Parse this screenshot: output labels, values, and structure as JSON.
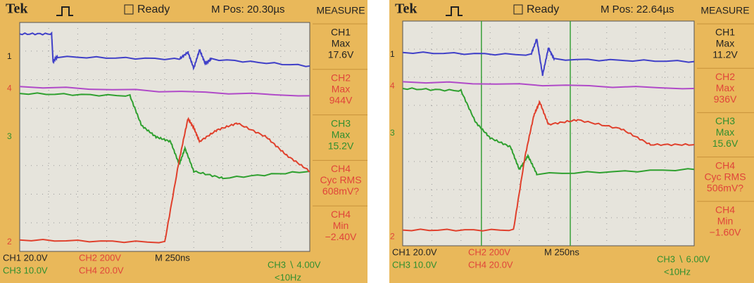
{
  "scopes": [
    {
      "header": {
        "brand": "Tek",
        "status": "Ready",
        "mpos": "M Pos: 20.30µs"
      },
      "measure": {
        "title": "MEASURE",
        "items": [
          {
            "channel": "CH1",
            "label": "Max",
            "value": "17.6V"
          },
          {
            "channel": "CH2",
            "label": "Max",
            "value": "944V"
          },
          {
            "channel": "CH3",
            "label": "Max",
            "value": "15.2V"
          },
          {
            "channel": "CH4",
            "label": "Cyc RMS",
            "value": "608mV?"
          },
          {
            "channel": "CH4",
            "label": "Min",
            "value": "−2.40V"
          }
        ]
      },
      "markers": [
        "1",
        "4",
        "3",
        "2"
      ],
      "footer": {
        "ch1": "CH1 20.0V",
        "ch2": "CH2 200V",
        "time": "M 250ns",
        "trigger": "CH3 ∖ 4.00V",
        "ch3": "CH3 10.0V",
        "ch4": "CH4 20.0V",
        "freq": "<10Hz"
      }
    },
    {
      "header": {
        "brand": "Tek",
        "status": "Ready",
        "mpos": "M Pos: 22.64µs"
      },
      "measure": {
        "title": "MEASURE",
        "items": [
          {
            "channel": "CH1",
            "label": "Max",
            "value": "11.2V"
          },
          {
            "channel": "CH2",
            "label": "Max",
            "value": "936V"
          },
          {
            "channel": "CH3",
            "label": "Max",
            "value": "15.6V"
          },
          {
            "channel": "CH4",
            "label": "Cyc RMS",
            "value": "506mV?"
          },
          {
            "channel": "CH4",
            "label": "Min",
            "value": "−1.60V"
          }
        ]
      },
      "markers": [
        "1",
        "4",
        "3",
        "2"
      ],
      "footer": {
        "ch1": "CH1 20.0V",
        "ch2": "CH2 200V",
        "time": "M 250ns",
        "trigger": "CH3 ∖ 6.00V",
        "ch3": "CH3 10.0V",
        "ch4": "CH4 20.0V",
        "freq": "<10Hz"
      }
    }
  ]
}
